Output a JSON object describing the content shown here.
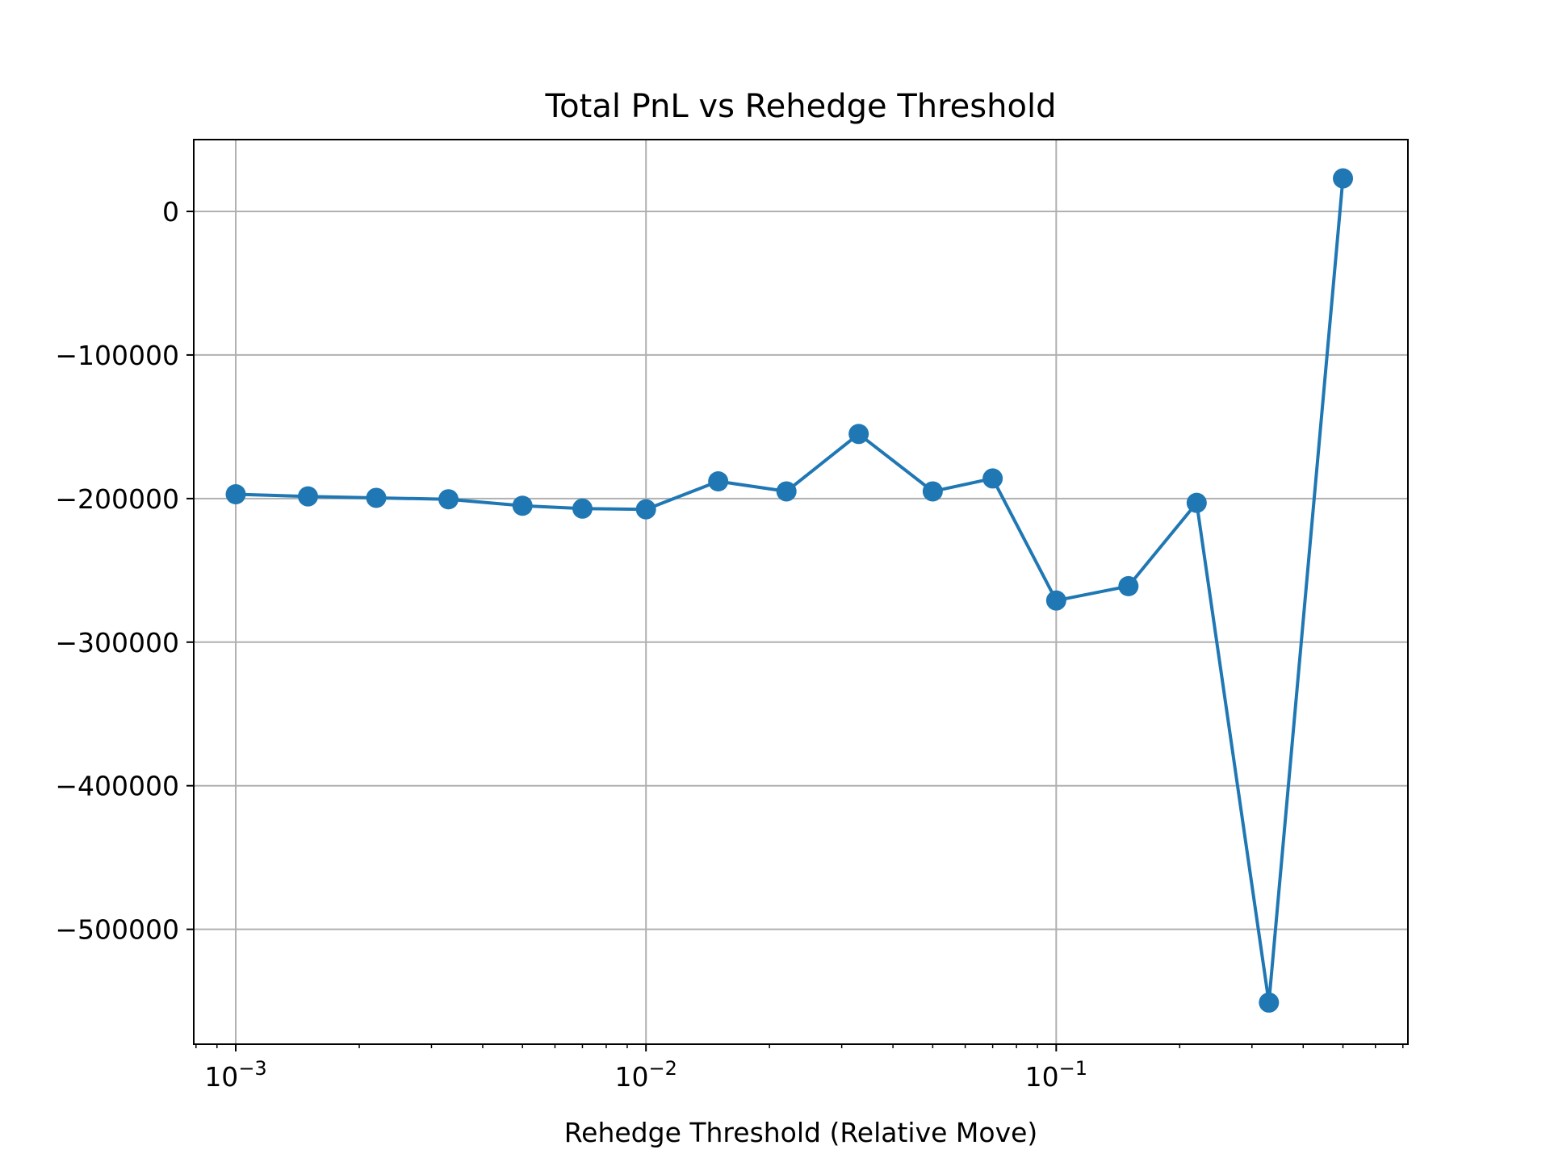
{
  "chart_data": {
    "type": "line",
    "title": "Total PnL vs Rehedge Threshold",
    "xlabel": "Rehedge Threshold (Relative Move)",
    "ylabel": "",
    "xscale": "log",
    "xlim": [
      0.00079,
      0.72
    ],
    "ylim": [
      -580000,
      50000
    ],
    "grid": true,
    "colors": {
      "series": "#1f77b4"
    },
    "x_ticks": [
      {
        "value": 0.001,
        "base": "10",
        "exp": "−3"
      },
      {
        "value": 0.01,
        "base": "10",
        "exp": "−2"
      },
      {
        "value": 0.1,
        "base": "10",
        "exp": "−1"
      }
    ],
    "y_ticks": [
      {
        "value": 0,
        "label": "0"
      },
      {
        "value": -100000,
        "label": "−100000"
      },
      {
        "value": -200000,
        "label": "−200000"
      },
      {
        "value": -300000,
        "label": "−300000"
      },
      {
        "value": -400000,
        "label": "−400000"
      },
      {
        "value": -500000,
        "label": "−500000"
      }
    ],
    "x": [
      0.001,
      0.0015,
      0.0022,
      0.0033,
      0.005,
      0.007,
      0.01,
      0.015,
      0.022,
      0.033,
      0.05,
      0.07,
      0.1,
      0.15,
      0.22,
      0.33,
      0.5
    ],
    "series": [
      {
        "values": [
          -197000,
          -198500,
          -199500,
          -200500,
          -205000,
          -207000,
          -207500,
          -188000,
          -195000,
          -155000,
          -195000,
          -186000,
          -271000,
          -261000,
          -203000,
          -551000,
          23000
        ]
      }
    ]
  }
}
